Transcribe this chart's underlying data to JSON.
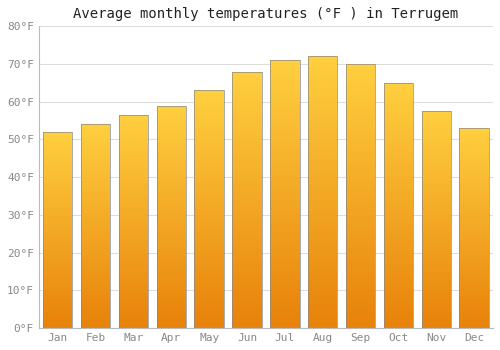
{
  "title": "Average monthly temperatures (°F ) in Terrugem",
  "months": [
    "Jan",
    "Feb",
    "Mar",
    "Apr",
    "May",
    "Jun",
    "Jul",
    "Aug",
    "Sep",
    "Oct",
    "Nov",
    "Dec"
  ],
  "values": [
    52.0,
    54.0,
    56.5,
    59.0,
    63.0,
    68.0,
    71.0,
    72.0,
    70.0,
    65.0,
    57.5,
    53.0
  ],
  "bar_color_bottom": "#E8820A",
  "bar_color_top": "#FFD040",
  "bar_edge_color": "#888888",
  "ylim": [
    0,
    80
  ],
  "yticks": [
    0,
    10,
    20,
    30,
    40,
    50,
    60,
    70,
    80
  ],
  "ytick_labels": [
    "0°F",
    "10°F",
    "20°F",
    "30°F",
    "40°F",
    "50°F",
    "60°F",
    "70°F",
    "80°F"
  ],
  "background_color": "#FFFFFF",
  "plot_bg_color": "#FFFFFF",
  "grid_color": "#DDDDDD",
  "title_fontsize": 10,
  "tick_fontsize": 8,
  "tick_color": "#888888",
  "bar_width": 0.78
}
